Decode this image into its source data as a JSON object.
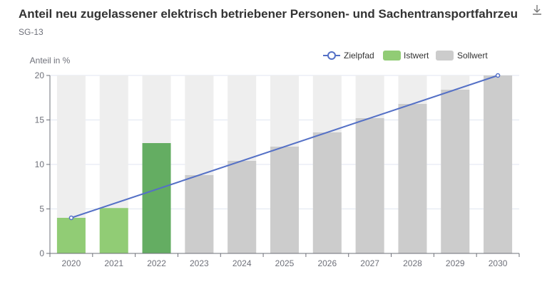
{
  "header": {
    "title": "Anteil neu zugelassener elektrisch betriebener Personen- und Sachentransportfahrzeu",
    "subtitle": "SG-13",
    "download_icon": "download-icon"
  },
  "chart_data": {
    "type": "bar",
    "categories": [
      "2020",
      "2021",
      "2022",
      "2023",
      "2024",
      "2025",
      "2026",
      "2027",
      "2028",
      "2029",
      "2030"
    ],
    "ylabel": "Anteil in %",
    "ylim": [
      0,
      20
    ],
    "yticks": [
      0,
      5,
      10,
      15,
      20
    ],
    "grid": true,
    "legend_position": "top-right",
    "series": [
      {
        "name": "Zielpfad",
        "kind": "line",
        "color": "#5470c6",
        "points": [
          {
            "x": "2020",
            "y": 4.0
          },
          {
            "x": "2030",
            "y": 20.0
          }
        ]
      },
      {
        "name": "Istwert",
        "kind": "bar",
        "color": "#91cc75",
        "highlight_color": "#64ad62",
        "values": [
          4.0,
          5.1,
          12.4,
          null,
          null,
          null,
          null,
          null,
          null,
          null,
          null
        ]
      },
      {
        "name": "Sollwert",
        "kind": "bar",
        "color": "#cccccc",
        "values": [
          null,
          null,
          null,
          8.8,
          10.4,
          12.0,
          13.6,
          15.2,
          16.8,
          18.4,
          20.0
        ]
      }
    ],
    "background_bars": {
      "color": "#eeeeee",
      "max": 20
    }
  }
}
